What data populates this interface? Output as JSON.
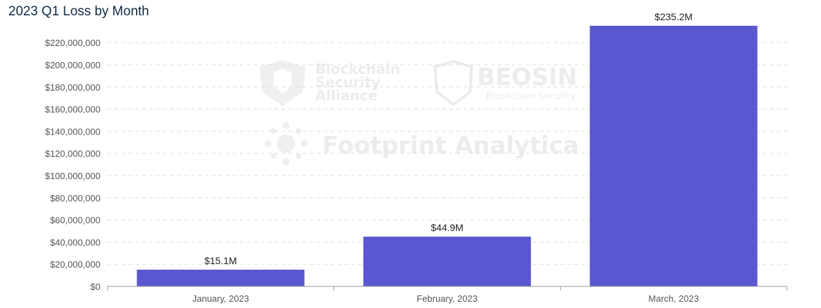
{
  "chart_data": {
    "type": "bar",
    "title": "2023 Q1 Loss by Month",
    "xlabel": "",
    "ylabel": "",
    "categories": [
      "January, 2023",
      "February, 2023",
      "March, 2023"
    ],
    "values": [
      15100000,
      44900000,
      235200000
    ],
    "data_labels": [
      "$15.1M",
      "$44.9M",
      "$235.2M"
    ],
    "ylim": [
      0,
      235200000
    ],
    "y_ticks": [
      0,
      20000000,
      40000000,
      60000000,
      80000000,
      100000000,
      120000000,
      140000000,
      160000000,
      180000000,
      200000000,
      220000000
    ],
    "y_tick_labels": [
      "$0",
      "$20,000,000",
      "$40,000,000",
      "$60,000,000",
      "$80,000,000",
      "$100,000,000",
      "$120,000,000",
      "$140,000,000",
      "$160,000,000",
      "$180,000,000",
      "$200,000,000",
      "$220,000,000"
    ],
    "grid": "horizontal dashed",
    "bar_color": "#5a57d1"
  },
  "watermarks": {
    "blockchain_security_alliance": [
      "Blockchain",
      "Security",
      "Alliance"
    ],
    "beosin": "BEOSIN",
    "beosin_sub": "Blockchain Security",
    "footprint": "Footprint Analytica"
  }
}
